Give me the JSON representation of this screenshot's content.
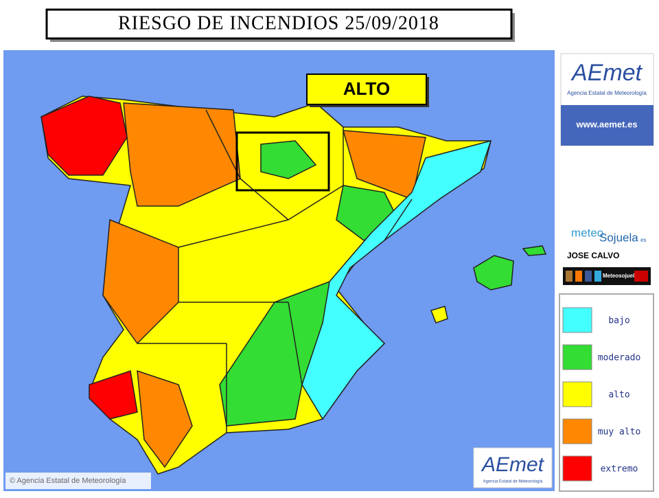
{
  "header": {
    "title": "RIESGO DE INCENDIOS 25/09/2018"
  },
  "badge": "ALTO",
  "logo": {
    "name": "AEmet",
    "subtitle": "Agencia Estatal de Meteorología",
    "url": "www.aemet.es"
  },
  "credit": {
    "site_parts": [
      "meteo",
      "Sojuela",
      "es"
    ],
    "author": "JOSE CALVO",
    "handle": "Meteosojuela"
  },
  "legend": {
    "items": [
      {
        "label": "bajo",
        "color": "#44ffff"
      },
      {
        "label": "moderado",
        "color": "#33dd33"
      },
      {
        "label": "alto",
        "color": "#ffff00"
      },
      {
        "label": "muy alto",
        "color": "#ff8800"
      },
      {
        "label": "extremo",
        "color": "#ff0000"
      }
    ]
  },
  "copyright": "© Agencia Estatal de Meteorología"
}
